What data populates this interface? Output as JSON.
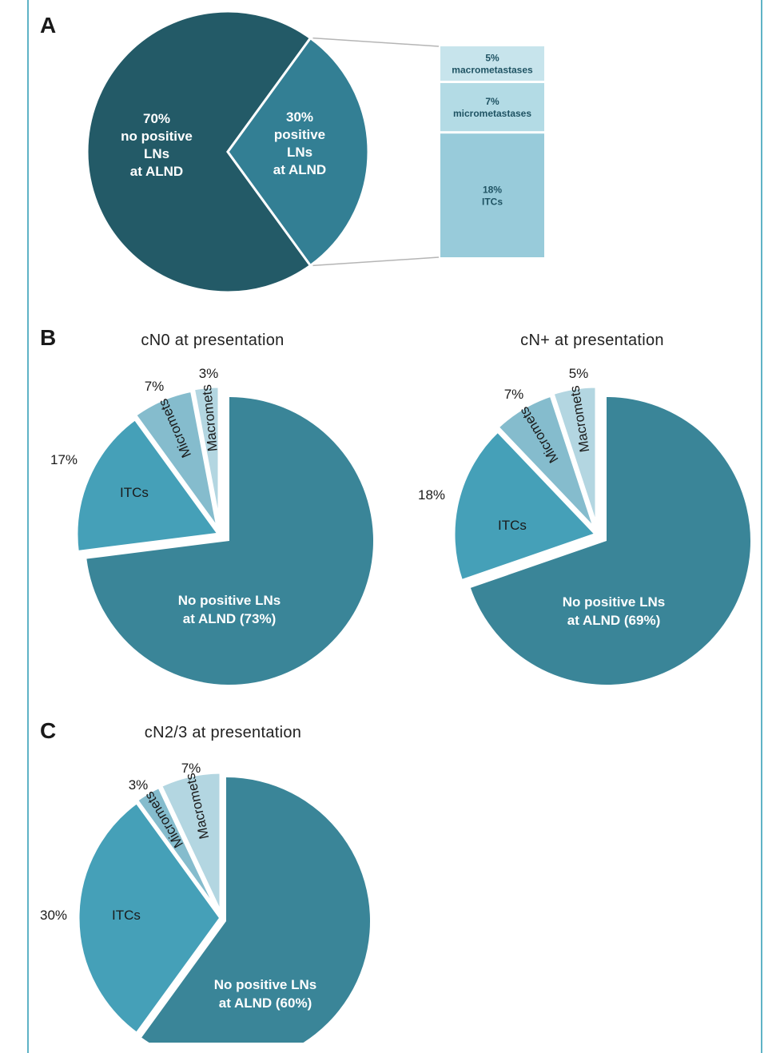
{
  "colors": {
    "frame": "#5fb3c6",
    "pieA_dark": "#235a67",
    "pieA_mid": "#337f94",
    "box_macro": "#c7e4ec",
    "box_micro": "#b3dbe5",
    "box_itc": "#98cbda",
    "none": "#3a8598",
    "itc": "#45a0b8",
    "micro": "#85bccd",
    "macro": "#b3d6e1"
  },
  "chart_data": [
    {
      "type": "pie",
      "panel": "A",
      "slices": [
        {
          "name": "no positive LNs at ALND",
          "value": 70,
          "label": [
            "70%",
            "no positive",
            "LNs",
            "at ALND"
          ]
        },
        {
          "name": "positive LNs at ALND",
          "value": 30,
          "label": [
            "30%",
            "positive",
            "LNs",
            "at ALND"
          ]
        }
      ],
      "breakdown": [
        {
          "value": 5,
          "label": [
            "5%",
            "macrometastases"
          ]
        },
        {
          "value": 7,
          "label": [
            "7%",
            "micrometastases"
          ]
        },
        {
          "value": 18,
          "label": [
            "18%",
            "ITCs"
          ]
        }
      ]
    },
    {
      "type": "pie",
      "panel": "B",
      "title": "cN0 at presentation",
      "slices": [
        {
          "name": "No positive LNs at ALND",
          "value": 73,
          "label": [
            "No positive LNs",
            "at ALND (73%)"
          ]
        },
        {
          "name": "ITCs",
          "value": 17,
          "label": [
            "ITCs"
          ],
          "pct": "17%"
        },
        {
          "name": "Micromets",
          "value": 7,
          "label": [
            "Micromets"
          ],
          "pct": "7%"
        },
        {
          "name": "Macromets",
          "value": 3,
          "label": [
            "Macromets"
          ],
          "pct": "3%"
        }
      ]
    },
    {
      "type": "pie",
      "panel": "B",
      "title": "cN+ at presentation",
      "slices": [
        {
          "name": "No positive LNs at ALND",
          "value": 69,
          "label": [
            "No positive LNs",
            "at ALND (69%)"
          ]
        },
        {
          "name": "ITCs",
          "value": 18,
          "label": [
            "ITCs"
          ],
          "pct": "18%"
        },
        {
          "name": "Micromets",
          "value": 7,
          "label": [
            "Micromets"
          ],
          "pct": "7%"
        },
        {
          "name": "Macromets",
          "value": 5,
          "label": [
            "Macromets"
          ],
          "pct": "5%"
        }
      ]
    },
    {
      "type": "pie",
      "panel": "C",
      "title": "cN2/3 at presentation",
      "slices": [
        {
          "name": "No positive LNs at ALND",
          "value": 60,
          "label": [
            "No positive LNs",
            "at ALND (60%)"
          ]
        },
        {
          "name": "ITCs",
          "value": 30,
          "label": [
            "ITCs"
          ],
          "pct": "30%"
        },
        {
          "name": "Micromets",
          "value": 3,
          "label": [
            "Micromets"
          ],
          "pct": "3%"
        },
        {
          "name": "Macromets",
          "value": 7,
          "label": [
            "Macromets"
          ],
          "pct": "7%"
        }
      ]
    }
  ],
  "panel_labels": {
    "a": "A",
    "b": "B",
    "c": "C"
  }
}
